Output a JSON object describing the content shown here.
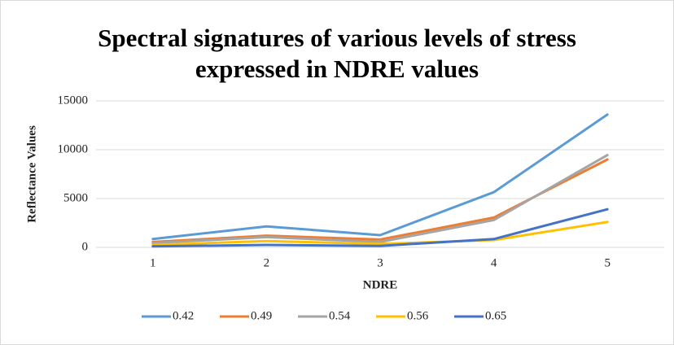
{
  "chart_data": {
    "type": "line",
    "title": "Spectral signatures of various levels of stress expressed in NDRE values",
    "x_label": "NDRE",
    "y_label": "Reflectance Values",
    "categories": [
      "1",
      "2",
      "3",
      "4",
      "5"
    ],
    "series": [
      {
        "name": "0.42",
        "color": "#5b9bd5",
        "values": [
          850,
          2150,
          1250,
          5650,
          13600
        ]
      },
      {
        "name": "0.49",
        "color": "#ed7d31",
        "values": [
          550,
          1200,
          800,
          3050,
          9000
        ]
      },
      {
        "name": "0.54",
        "color": "#a5a5a5",
        "values": [
          450,
          1050,
          550,
          2800,
          9450
        ]
      },
      {
        "name": "0.56",
        "color": "#ffc000",
        "values": [
          250,
          650,
          350,
          750,
          2600
        ]
      },
      {
        "name": "0.65",
        "color": "#4472c4",
        "values": [
          100,
          250,
          150,
          850,
          3900
        ]
      }
    ],
    "ylim": [
      0,
      15000
    ],
    "yticks": [
      0,
      5000,
      10000,
      15000
    ],
    "grid": true,
    "legend": "bottom"
  }
}
